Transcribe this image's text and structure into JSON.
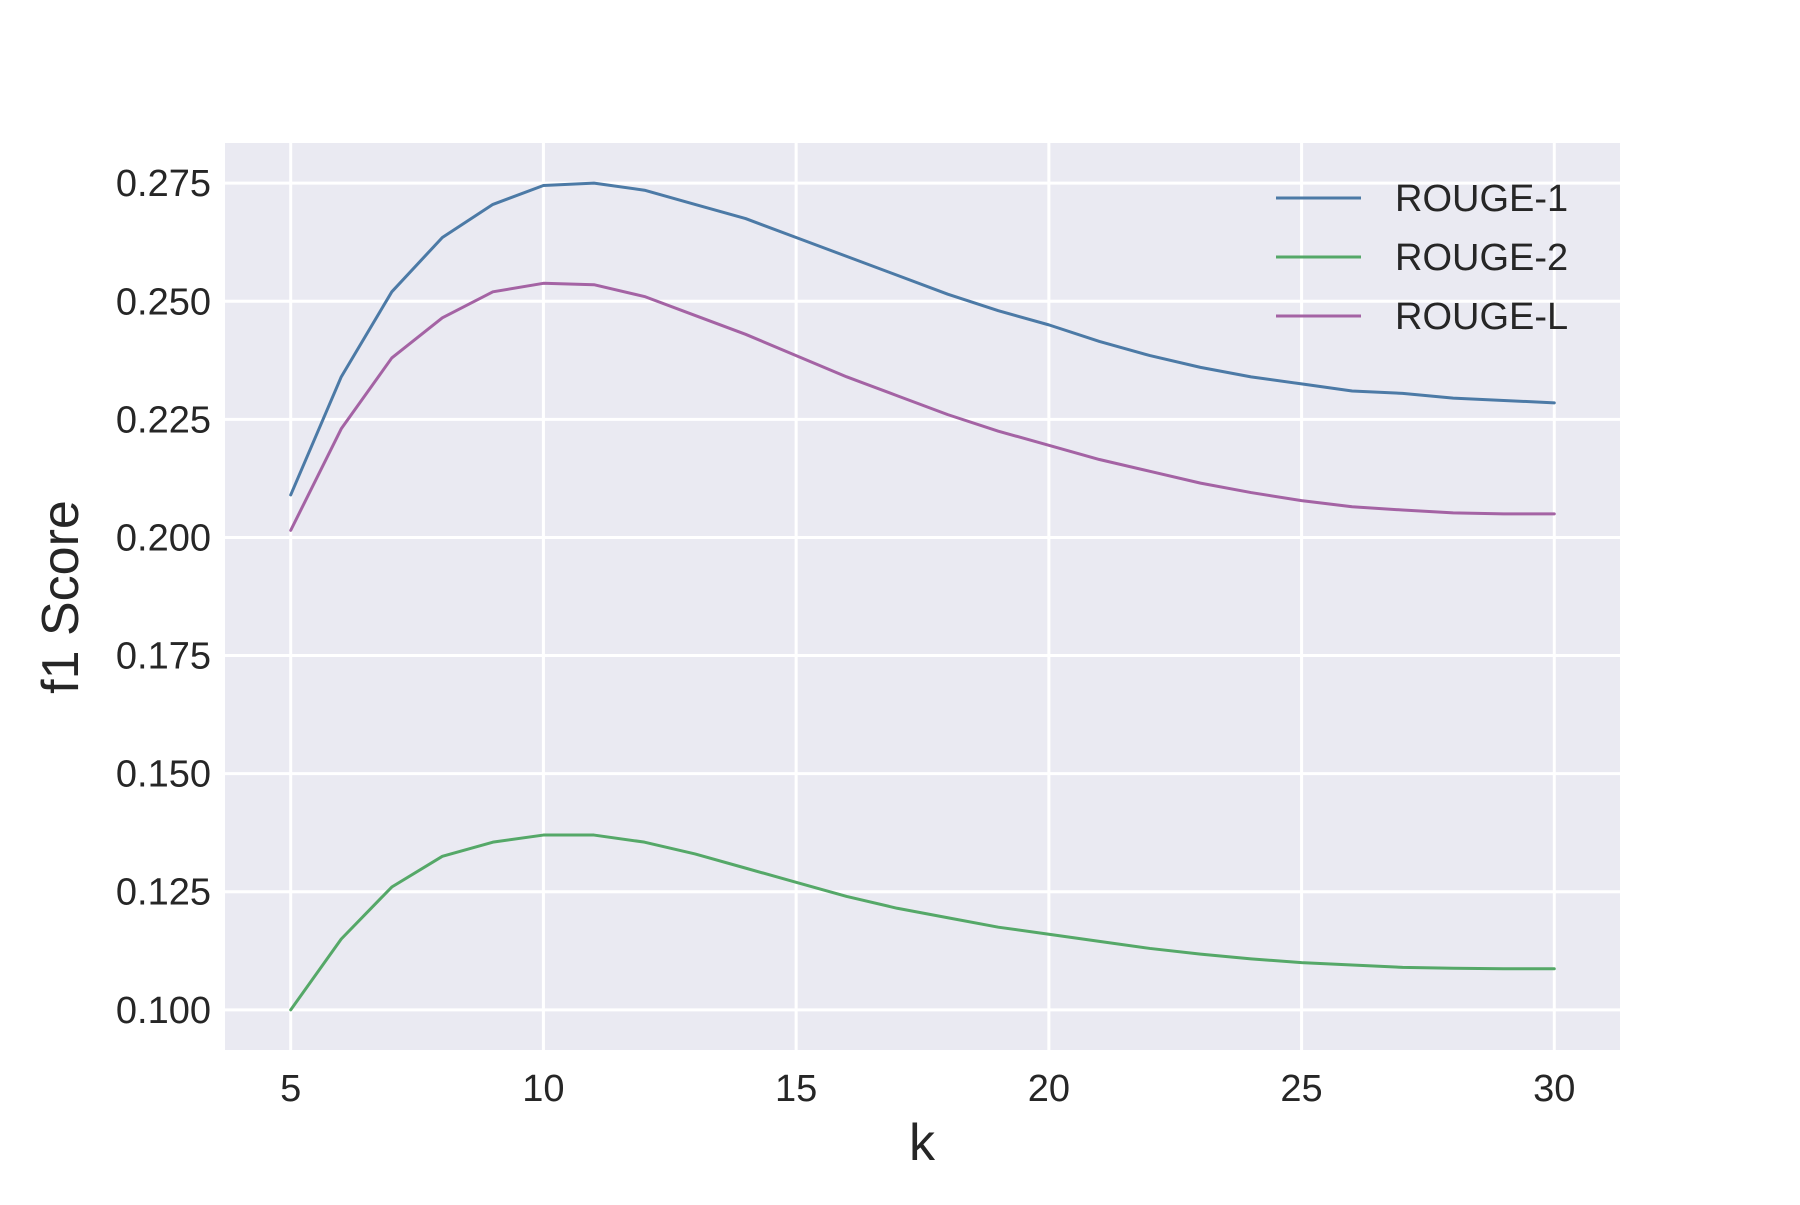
{
  "chart_data": {
    "type": "line",
    "title": "",
    "xlabel": "k",
    "ylabel": "f1 Score",
    "x": [
      5,
      6,
      7,
      8,
      9,
      10,
      11,
      12,
      13,
      14,
      15,
      16,
      17,
      18,
      19,
      20,
      21,
      22,
      23,
      24,
      25,
      26,
      27,
      28,
      29,
      30
    ],
    "series": [
      {
        "name": "ROUGE-1",
        "color": "#4c7aa6",
        "values": [
          0.209,
          0.234,
          0.252,
          0.2635,
          0.2705,
          0.2745,
          0.275,
          0.2735,
          0.2705,
          0.2675,
          0.2635,
          0.2595,
          0.2555,
          0.2515,
          0.248,
          0.245,
          0.2415,
          0.2385,
          0.236,
          0.234,
          0.2325,
          0.231,
          0.2305,
          0.2295,
          0.229,
          0.2285
        ]
      },
      {
        "name": "ROUGE-2",
        "color": "#55a868",
        "values": [
          0.1,
          0.115,
          0.126,
          0.1325,
          0.1355,
          0.137,
          0.137,
          0.1355,
          0.133,
          0.13,
          0.127,
          0.124,
          0.1215,
          0.1195,
          0.1175,
          0.116,
          0.1145,
          0.113,
          0.1118,
          0.1108,
          0.11,
          0.1095,
          0.109,
          0.1088,
          0.1087,
          0.1087
        ]
      },
      {
        "name": "ROUGE-L",
        "color": "#a463a4",
        "values": [
          0.2015,
          0.223,
          0.238,
          0.2465,
          0.252,
          0.2538,
          0.2535,
          0.251,
          0.247,
          0.243,
          0.2385,
          0.234,
          0.23,
          0.226,
          0.2225,
          0.2195,
          0.2165,
          0.214,
          0.2115,
          0.2095,
          0.2078,
          0.2065,
          0.2058,
          0.2052,
          0.205,
          0.205
        ]
      }
    ],
    "xticks": [
      "5",
      "10",
      "15",
      "20",
      "25",
      "30"
    ],
    "yticks": [
      "0.100",
      "0.125",
      "0.150",
      "0.175",
      "0.200",
      "0.225",
      "0.250",
      "0.275"
    ],
    "xlim": [
      3.7,
      31.3
    ],
    "ylim": [
      0.0915,
      0.2835
    ],
    "grid": true,
    "legend_position": "top-right",
    "colors": {
      "plot_background": "#eaeaf2",
      "grid": "#ffffff"
    }
  }
}
